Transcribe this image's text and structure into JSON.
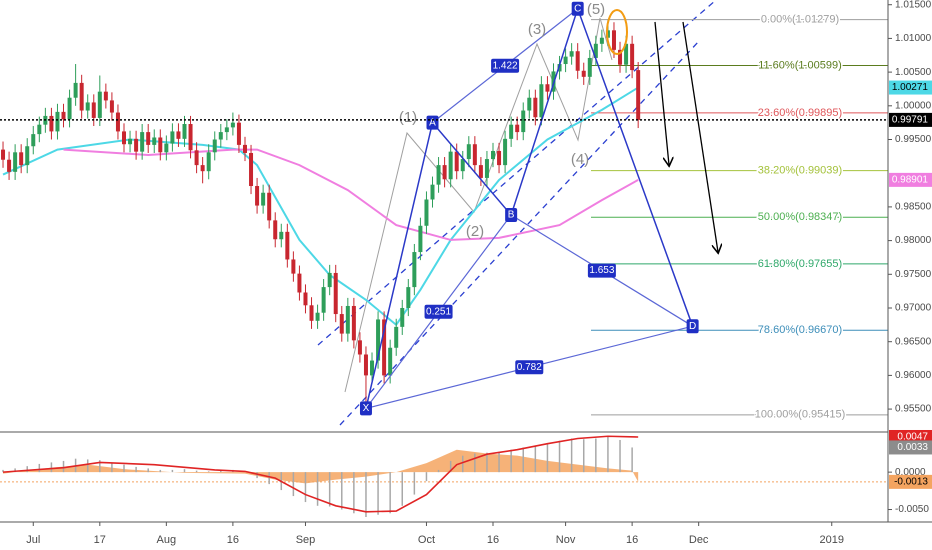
{
  "chart_data": [
    {
      "type": "candlestick",
      "xlim": [
        -0.5,
        146.3
      ],
      "xticks": [
        {
          "value": 5,
          "label": "Jul"
        },
        {
          "value": 16,
          "label": "17"
        },
        {
          "value": 27,
          "label": "Aug"
        },
        {
          "value": 38,
          "label": "16"
        },
        {
          "value": 50,
          "label": "Sep"
        },
        {
          "value": 70,
          "label": "Oct"
        },
        {
          "value": 81,
          "label": "16"
        },
        {
          "value": 93,
          "label": "Nov"
        },
        {
          "value": 104,
          "label": "16"
        },
        {
          "value": 115,
          "label": "Dec"
        },
        {
          "value": 137,
          "label": "2019"
        }
      ],
      "ylim": [
        0.9516,
        1.0157
      ],
      "yticks": [
        {
          "value": 1.015,
          "label": "1.01500"
        },
        {
          "value": 1.01,
          "label": "1.01000"
        },
        {
          "value": 1.005,
          "label": "1.00500"
        },
        {
          "value": 1.0,
          "label": "1.00000"
        },
        {
          "value": 0.995,
          "label": "0.99500"
        },
        {
          "value": 0.985,
          "label": "0.98500"
        },
        {
          "value": 0.98,
          "label": "0.98000"
        },
        {
          "value": 0.975,
          "label": "0.97500"
        },
        {
          "value": 0.97,
          "label": "0.97000"
        },
        {
          "value": 0.965,
          "label": "0.96500"
        },
        {
          "value": 0.96,
          "label": "0.96000"
        },
        {
          "value": 0.955,
          "label": "0.95500"
        }
      ],
      "up_color": "#2e9e5a",
      "down_color": "#c8262f",
      "open": [
        0.9935,
        0.992,
        0.9902,
        0.9931,
        0.9912,
        0.994,
        0.9958,
        0.9972,
        0.9985,
        0.9962,
        0.9991,
        0.998,
        1.0012,
        1.0034,
        0.9993,
        1.0005,
        0.9982,
        1.0021,
        1.0008,
        0.999,
        0.9962,
        0.9943,
        0.9951,
        0.9932,
        0.9961,
        0.9942,
        0.9953,
        0.9931,
        0.9944,
        0.9962,
        0.9951,
        0.9973,
        0.9934,
        0.9912,
        0.9903,
        0.9931,
        0.995,
        0.9961,
        0.9968,
        0.9975,
        0.9942,
        0.993,
        0.9881,
        0.9852,
        0.9871,
        0.983,
        0.9802,
        0.9813,
        0.9772,
        0.9751,
        0.9723,
        0.9704,
        0.9681,
        0.9693,
        0.9731,
        0.9752,
        0.9691,
        0.9662,
        0.9703,
        0.9652,
        0.9631,
        0.96,
        0.9622,
        0.9683,
        0.96,
        0.9641,
        0.9672,
        0.97,
        0.9731,
        0.9783,
        0.9822,
        0.9861,
        0.9883,
        0.9912,
        0.9891,
        0.9932,
        0.9903,
        0.9921,
        0.9943,
        0.9912,
        0.9893,
        0.9921,
        0.9933,
        0.9912,
        0.9951,
        0.9972,
        0.9961,
        0.9993,
        1.0012,
        0.9983,
        1.0032,
        1.0021,
        1.0051,
        1.0062,
        1.0073,
        1.0081,
        1.0052,
        1.0043,
        1.0071,
        1.0092,
        1.0101,
        1.0112,
        1.0083,
        1.0061,
        1.0092,
        1.0053
      ],
      "high": [
        0.9947,
        0.9932,
        0.9943,
        0.9943,
        0.9952,
        0.997,
        0.9984,
        0.9997,
        0.9997,
        1.0003,
        1.0003,
        1.0024,
        1.0062,
        1.0046,
        1.0017,
        1.0017,
        1.0045,
        1.0033,
        1.002,
        1.0002,
        0.9974,
        0.9963,
        0.9963,
        0.9973,
        0.9973,
        0.9965,
        0.9965,
        0.9956,
        0.9974,
        0.9974,
        0.9985,
        0.9985,
        0.9946,
        0.9924,
        0.9943,
        0.9962,
        0.9973,
        0.998,
        0.999,
        0.9987,
        0.9954,
        0.9942,
        0.9893,
        0.9883,
        0.9883,
        0.9842,
        0.9825,
        0.9825,
        0.9784,
        0.9763,
        0.9735,
        0.9716,
        0.9705,
        0.9743,
        0.9764,
        0.9764,
        0.9703,
        0.9715,
        0.9715,
        0.9664,
        0.9643,
        0.9634,
        0.9695,
        0.9695,
        0.9653,
        0.9684,
        0.9712,
        0.9743,
        0.9795,
        0.9834,
        0.9873,
        0.9895,
        0.9924,
        0.9924,
        0.9944,
        0.9944,
        0.9933,
        0.9955,
        0.9955,
        0.9924,
        0.9933,
        0.9945,
        0.9945,
        0.9963,
        0.9984,
        0.9984,
        1.0005,
        1.0024,
        1.0024,
        1.0044,
        1.0044,
        1.0063,
        1.0074,
        1.0085,
        1.0093,
        1.0093,
        1.0064,
        1.0083,
        1.0104,
        1.0113,
        1.0128,
        1.0124,
        1.0095,
        1.0104,
        1.0104,
        1.0065
      ],
      "low": [
        0.9908,
        0.989,
        0.989,
        0.99,
        0.99,
        0.9928,
        0.9946,
        0.996,
        0.995,
        0.995,
        0.9968,
        0.9968,
        1.0,
        0.9981,
        0.9981,
        0.997,
        0.997,
        0.9996,
        0.9978,
        0.995,
        0.9931,
        0.9931,
        0.992,
        0.992,
        0.993,
        0.993,
        0.9919,
        0.9919,
        0.9932,
        0.9939,
        0.9939,
        0.9922,
        0.99,
        0.9885,
        0.9891,
        0.9919,
        0.9938,
        0.9949,
        0.9956,
        0.993,
        0.9918,
        0.9869,
        0.984,
        0.984,
        0.9818,
        0.979,
        0.979,
        0.976,
        0.9739,
        0.9711,
        0.9692,
        0.9669,
        0.9669,
        0.9681,
        0.9719,
        0.9679,
        0.965,
        0.965,
        0.964,
        0.9619,
        0.9555,
        0.9588,
        0.961,
        0.9588,
        0.9588,
        0.9629,
        0.966,
        0.9688,
        0.9719,
        0.9771,
        0.981,
        0.9849,
        0.9871,
        0.9879,
        0.9879,
        0.9891,
        0.9891,
        0.9909,
        0.99,
        0.9881,
        0.9881,
        0.9909,
        0.99,
        0.99,
        0.9939,
        0.9949,
        0.9949,
        0.9981,
        0.9971,
        0.9971,
        1.0009,
        1.0009,
        1.0039,
        1.005,
        1.0061,
        1.004,
        1.0031,
        1.0031,
        1.0059,
        1.008,
        1.0089,
        1.0071,
        1.0049,
        1.0049,
        1.0041,
        0.9967
      ],
      "close": [
        0.992,
        0.9902,
        0.9931,
        0.9912,
        0.994,
        0.9958,
        0.9972,
        0.9985,
        0.9962,
        0.9991,
        0.998,
        1.0012,
        1.0034,
        0.9993,
        1.0005,
        0.9982,
        1.0021,
        1.0008,
        0.999,
        0.9962,
        0.9943,
        0.9951,
        0.9932,
        0.9961,
        0.9942,
        0.9953,
        0.9931,
        0.9944,
        0.9962,
        0.9951,
        0.9973,
        0.9934,
        0.9912,
        0.9903,
        0.9931,
        0.995,
        0.9961,
        0.9968,
        0.9975,
        0.9942,
        0.993,
        0.9881,
        0.9852,
        0.9871,
        0.983,
        0.9802,
        0.9813,
        0.9772,
        0.9751,
        0.9723,
        0.9704,
        0.9681,
        0.9693,
        0.9731,
        0.9752,
        0.9691,
        0.9662,
        0.9703,
        0.9652,
        0.9631,
        0.96,
        0.9622,
        0.9683,
        0.96,
        0.9641,
        0.9672,
        0.97,
        0.9731,
        0.9783,
        0.9822,
        0.9861,
        0.9883,
        0.9912,
        0.9891,
        0.9932,
        0.9903,
        0.9921,
        0.9943,
        0.9912,
        0.9893,
        0.9921,
        0.9933,
        0.9912,
        0.9951,
        0.9972,
        0.9961,
        0.9993,
        1.0012,
        0.9983,
        1.0032,
        1.0021,
        1.0051,
        1.0062,
        1.0073,
        1.0081,
        1.0052,
        1.0043,
        1.0071,
        1.0092,
        1.0101,
        1.0112,
        1.0083,
        1.0061,
        1.0092,
        1.0053,
        0.99791
      ],
      "last_close_label": "0.99791",
      "series": [
        {
          "color": "#4dd8e6",
          "x": [
            0,
            9,
            21,
            33,
            39,
            42,
            49,
            54,
            60,
            65,
            69,
            74,
            82,
            90,
            99,
            105
          ],
          "values": [
            0.9898,
            0.9935,
            0.995,
            0.9942,
            0.9935,
            0.9912,
            0.9801,
            0.9749,
            0.9712,
            0.9675,
            0.9727,
            0.9801,
            0.989,
            0.995,
            0.9994,
            1.00271
          ],
          "value_label": "1.00271"
        },
        {
          "color": "#f07ee0",
          "x": [
            10,
            24,
            38,
            42,
            49,
            57,
            65,
            74,
            82,
            92,
            99,
            105
          ],
          "values": [
            0.9935,
            0.9927,
            0.9935,
            0.9935,
            0.9912,
            0.9875,
            0.9823,
            0.9801,
            0.9804,
            0.9823,
            0.986,
            0.98901
          ],
          "value_label": "0.98901"
        }
      ],
      "fib_levels": [
        {
          "label": "0.00%(1.01279)",
          "value": 1.01279,
          "color": "#9e9e9e"
        },
        {
          "label": "11.60%(1.00599)",
          "value": 1.00599,
          "color": "#5b7c1e"
        },
        {
          "label": "23.60%(0.99895)",
          "value": 0.99895,
          "color": "#e0575b"
        },
        {
          "label": "38.20%(0.99039)",
          "value": 0.99039,
          "color": "#a4c23b"
        },
        {
          "label": "50.00%(0.98347)",
          "value": 0.98347,
          "color": "#4caf50"
        },
        {
          "label": "61.80%(0.97655)",
          "value": 0.97655,
          "color": "#2fa86a"
        },
        {
          "label": "78.60%(0.96670)",
          "value": 0.9667,
          "color": "#3d8eb9"
        },
        {
          "label": "100.00%(0.95415)",
          "value": 0.95415,
          "color": "#9e9e9e"
        }
      ],
      "pattern_points": [
        {
          "label": "X",
          "x": 60,
          "value": 0.9551
        },
        {
          "label": "A",
          "x": 71,
          "value": 0.9975
        },
        {
          "label": "B",
          "x": 84,
          "value": 0.9838
        },
        {
          "label": "C",
          "x": 95,
          "value": 1.0144
        },
        {
          "label": "D",
          "x": 114,
          "value": 0.9673
        }
      ],
      "pattern_ratios": [
        {
          "label": "0.251",
          "from": "X",
          "to": "B"
        },
        {
          "label": "1.422",
          "from": "A",
          "to": "C"
        },
        {
          "label": "1.653",
          "from": "B",
          "to": "D"
        },
        {
          "label": "0.782",
          "from": "X",
          "to": "D"
        }
      ],
      "wave_labels": [
        "(1)",
        "(2)",
        "(3)",
        "(4)",
        "(5)"
      ]
    },
    {
      "type": "macd",
      "ylim": [
        -0.0064,
        0.0051
      ],
      "yticks": [
        {
          "value": 0,
          "label": "0.0000"
        },
        {
          "value": -0.005,
          "label": "-0.0050"
        }
      ],
      "histogram": {
        "color": "#a8a8a8",
        "x": [
          0,
          2,
          4,
          6,
          8,
          10,
          12,
          14,
          16,
          18,
          20,
          22,
          24,
          26,
          28,
          30,
          32,
          34,
          36,
          38,
          40,
          42,
          44,
          46,
          48,
          50,
          52,
          54,
          56,
          58,
          60,
          62,
          64,
          66,
          68,
          70,
          72,
          74,
          76,
          78,
          80,
          82,
          84,
          86,
          88,
          90,
          92,
          94,
          96,
          98,
          100,
          102,
          104
        ],
        "values": [
          0.0003,
          0.0005,
          0.0008,
          0.0011,
          0.0013,
          0.0015,
          0.0018,
          0.0017,
          0.0016,
          0.0013,
          0.001,
          0.0007,
          0.0005,
          0.0003,
          0.0003,
          0.0004,
          0.0002,
          0.0001,
          0.0002,
          0.0003,
          0,
          -0.0008,
          -0.0016,
          -0.0024,
          -0.0032,
          -0.004,
          -0.0045,
          -0.0046,
          -0.005,
          -0.0055,
          -0.006,
          -0.0057,
          -0.0055,
          -0.0045,
          -0.003,
          -0.0012,
          0.0003,
          0.0015,
          0.0022,
          0.0025,
          0.0026,
          0.0027,
          0.003,
          0.0033,
          0.0035,
          0.0039,
          0.0042,
          0.0045,
          0.0044,
          0.0045,
          0.0047,
          0.0043,
          0.0033
        ],
        "value_label": "0.0033"
      },
      "area": {
        "color": "#f4a460",
        "x": [
          0,
          8,
          14,
          20,
          30,
          40,
          45,
          50,
          55,
          60,
          65,
          70,
          75,
          80,
          85,
          90,
          95,
          100,
          104,
          105
        ],
        "values": [
          -0.0002,
          0.0006,
          0.001,
          0.0004,
          -0.0001,
          -0.0002,
          -0.001,
          -0.0015,
          -0.001,
          -0.0006,
          0,
          0.0012,
          0.003,
          0.0025,
          0.0022,
          0.0015,
          0.001,
          0.0005,
          0.0002,
          -0.0013
        ],
        "value_label": "-0.0013"
      },
      "series": [
        {
          "color": "#e02424",
          "x": [
            0,
            10,
            16,
            25,
            35,
            40,
            45,
            50,
            55,
            60,
            65,
            70,
            75,
            80,
            85,
            90,
            95,
            100,
            105
          ],
          "values": [
            0,
            0.0006,
            0.0013,
            0.001,
            0.0003,
            0.0001,
            -0.0008,
            -0.003,
            -0.0045,
            -0.0053,
            -0.0052,
            -0.003,
            0.001,
            0.0024,
            0.003,
            0.0038,
            0.0045,
            0.0048,
            0.0047
          ],
          "value_label": "0.0047"
        }
      ]
    }
  ]
}
